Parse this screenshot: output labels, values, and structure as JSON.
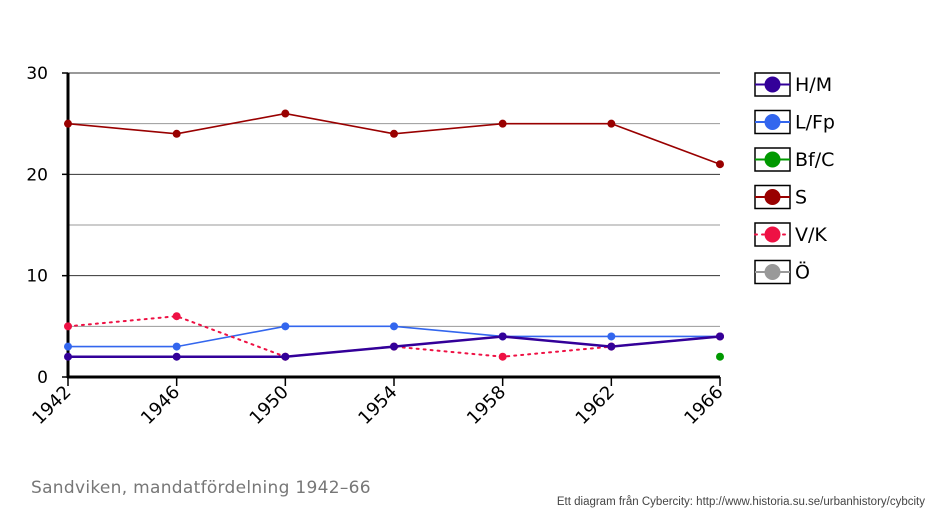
{
  "chart_data": {
    "type": "line",
    "categories": [
      "1942",
      "1946",
      "1950",
      "1954",
      "1958",
      "1962",
      "1966"
    ],
    "ylim": [
      0,
      30
    ],
    "yticks": [
      "0",
      "10",
      "20",
      "30"
    ],
    "grid": true,
    "legend_position": "right",
    "series": [
      {
        "name": "H/M",
        "color": "#330099",
        "style": "solid",
        "values": [
          2,
          2,
          2,
          3,
          4,
          3,
          4
        ]
      },
      {
        "name": "L/Fp",
        "color": "#3366ee",
        "style": "solid",
        "values": [
          3,
          3,
          5,
          5,
          4,
          4,
          4
        ]
      },
      {
        "name": "Bf/C",
        "color": "#009900",
        "style": "solid",
        "values": [
          null,
          null,
          null,
          null,
          null,
          null,
          2
        ]
      },
      {
        "name": "S",
        "color": "#990000",
        "style": "solid",
        "values": [
          25,
          24,
          26,
          24,
          25,
          25,
          21
        ]
      },
      {
        "name": "V/K",
        "color": "#ee1144",
        "style": "dotted",
        "values": [
          5,
          6,
          2,
          3,
          2,
          3,
          4
        ]
      },
      {
        "name": "Ö",
        "color": "#999999",
        "style": "solid",
        "values": [
          null,
          null,
          null,
          null,
          null,
          null,
          null
        ]
      }
    ],
    "caption": "Sandviken, mandatfördelning 1942–66",
    "credit": "Ett diagram från Cybercity: http://www.historia.su.se/urbanhistory/cybcity"
  }
}
